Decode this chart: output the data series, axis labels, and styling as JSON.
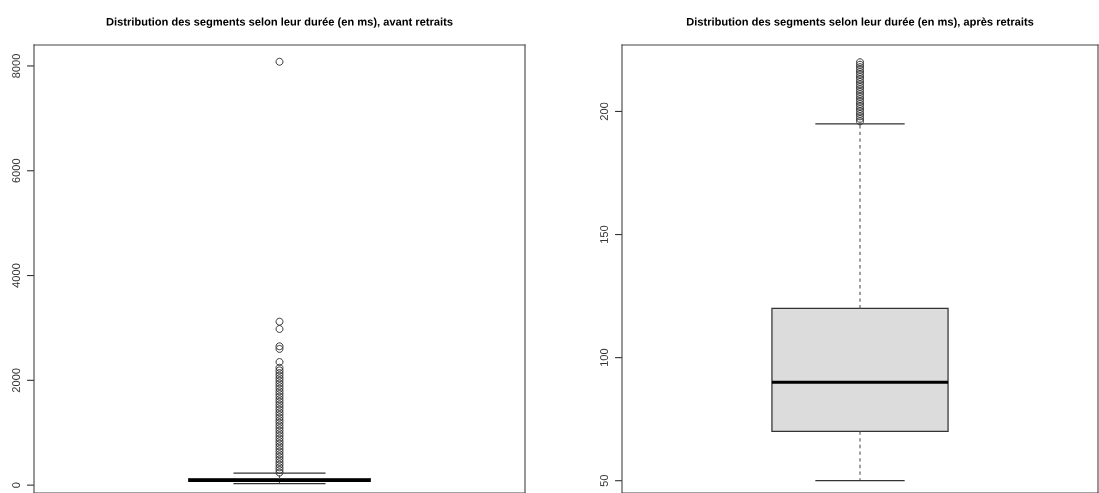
{
  "chart_data": [
    {
      "type": "box",
      "title": "Distribution des segments selon leur durée (en ms), avant retraits",
      "categories": [
        null
      ],
      "ylim": [
        -150,
        8400
      ],
      "yticks": [
        0,
        2000,
        4000,
        6000,
        8000
      ],
      "tick_labels": "y",
      "grid": false,
      "series": [
        {
          "color": "#dcdcdc",
          "boxes": [
            {
              "low": 30,
              "q1": 70,
              "median": 90,
              "q3": 125,
              "high": 230,
              "outliers": [
                240,
                290,
                340,
                390,
                440,
                490,
                540,
                590,
                640,
                690,
                740,
                790,
                840,
                890,
                940,
                990,
                1040,
                1090,
                1140,
                1190,
                1240,
                1290,
                1340,
                1390,
                1440,
                1490,
                1540,
                1590,
                1640,
                1690,
                1740,
                1790,
                1840,
                1890,
                1940,
                1990,
                2040,
                2090,
                2140,
                2190,
                2240,
                2350,
                2600,
                2650,
                2980,
                3120,
                8080
              ]
            }
          ]
        }
      ]
    },
    {
      "type": "box",
      "title": "Distribution des segments selon leur durée (en ms), après retraits",
      "categories": [
        null
      ],
      "ylim": [
        45,
        227
      ],
      "yticks": [
        50,
        100,
        150,
        200
      ],
      "tick_labels": "y",
      "grid": false,
      "series": [
        {
          "color": "#dcdcdc",
          "boxes": [
            {
              "low": 50,
              "q1": 70,
              "median": 90,
              "q3": 120,
              "high": 195,
              "outliers": [
                196,
                197,
                198,
                199,
                200,
                201,
                202,
                203,
                204,
                205,
                206,
                207,
                208,
                209,
                210,
                211,
                212,
                213,
                214,
                215,
                216,
                217,
                218,
                219,
                220
              ]
            }
          ]
        }
      ]
    }
  ]
}
